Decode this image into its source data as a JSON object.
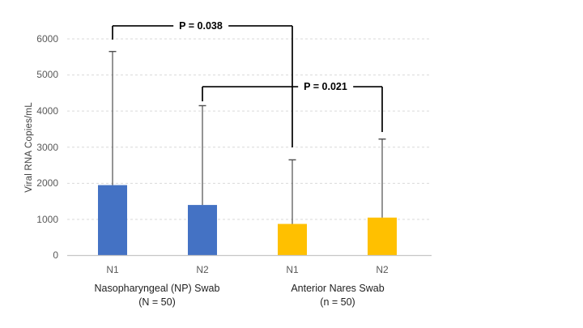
{
  "colors": {
    "np_bar": "#4472C4",
    "an_bar": "#FFC000",
    "grid": "#D9D9D9",
    "axis": "#C6C6C6",
    "whisker": "#4D4D4D",
    "annotation": "#000000",
    "tick_text": "#595959",
    "background": "#FFFFFF"
  },
  "chart_data": {
    "type": "bar",
    "title": "",
    "xlabel": "",
    "ylabel": "Viral RNA Copies/mL",
    "ylim": [
      0,
      6000
    ],
    "yticks": [
      0,
      1000,
      2000,
      3000,
      4000,
      5000,
      6000
    ],
    "grid": true,
    "legend": false,
    "categories": [
      "N1",
      "N2",
      "N1",
      "N2"
    ],
    "groups": [
      {
        "label_line1": "Nasopharyngeal (NP) Swab",
        "label_line2": "(N = 50)",
        "bar_indexes": [
          0,
          1
        ]
      },
      {
        "label_line1": "Anterior Nares Swab",
        "label_line2": "(n = 50)",
        "bar_indexes": [
          2,
          3
        ]
      }
    ],
    "series": [
      {
        "name": "NP-N1",
        "group": "Nasopharyngeal (NP) Swab",
        "category": "N1",
        "value": 1950,
        "error_top": 5650,
        "color": "#4472C4"
      },
      {
        "name": "NP-N2",
        "group": "Nasopharyngeal (NP) Swab",
        "category": "N2",
        "value": 1400,
        "error_top": 4150,
        "color": "#4472C4"
      },
      {
        "name": "AN-N1",
        "group": "Anterior Nares Swab",
        "category": "N1",
        "value": 875,
        "error_top": 2650,
        "color": "#FFC000"
      },
      {
        "name": "AN-N2",
        "group": "Anterior Nares Swab",
        "category": "N2",
        "value": 1050,
        "error_top": 3225,
        "color": "#FFC000"
      }
    ],
    "annotations": [
      {
        "label": "P = 0.038",
        "from_bar": 0,
        "to_bar": 2,
        "level": 6360,
        "from_drop": 5980,
        "to_drop": 2995
      },
      {
        "label": "P = 0.021",
        "from_bar": 1,
        "to_bar": 3,
        "level": 4675,
        "from_drop": 4270,
        "to_drop": 3420
      }
    ]
  }
}
